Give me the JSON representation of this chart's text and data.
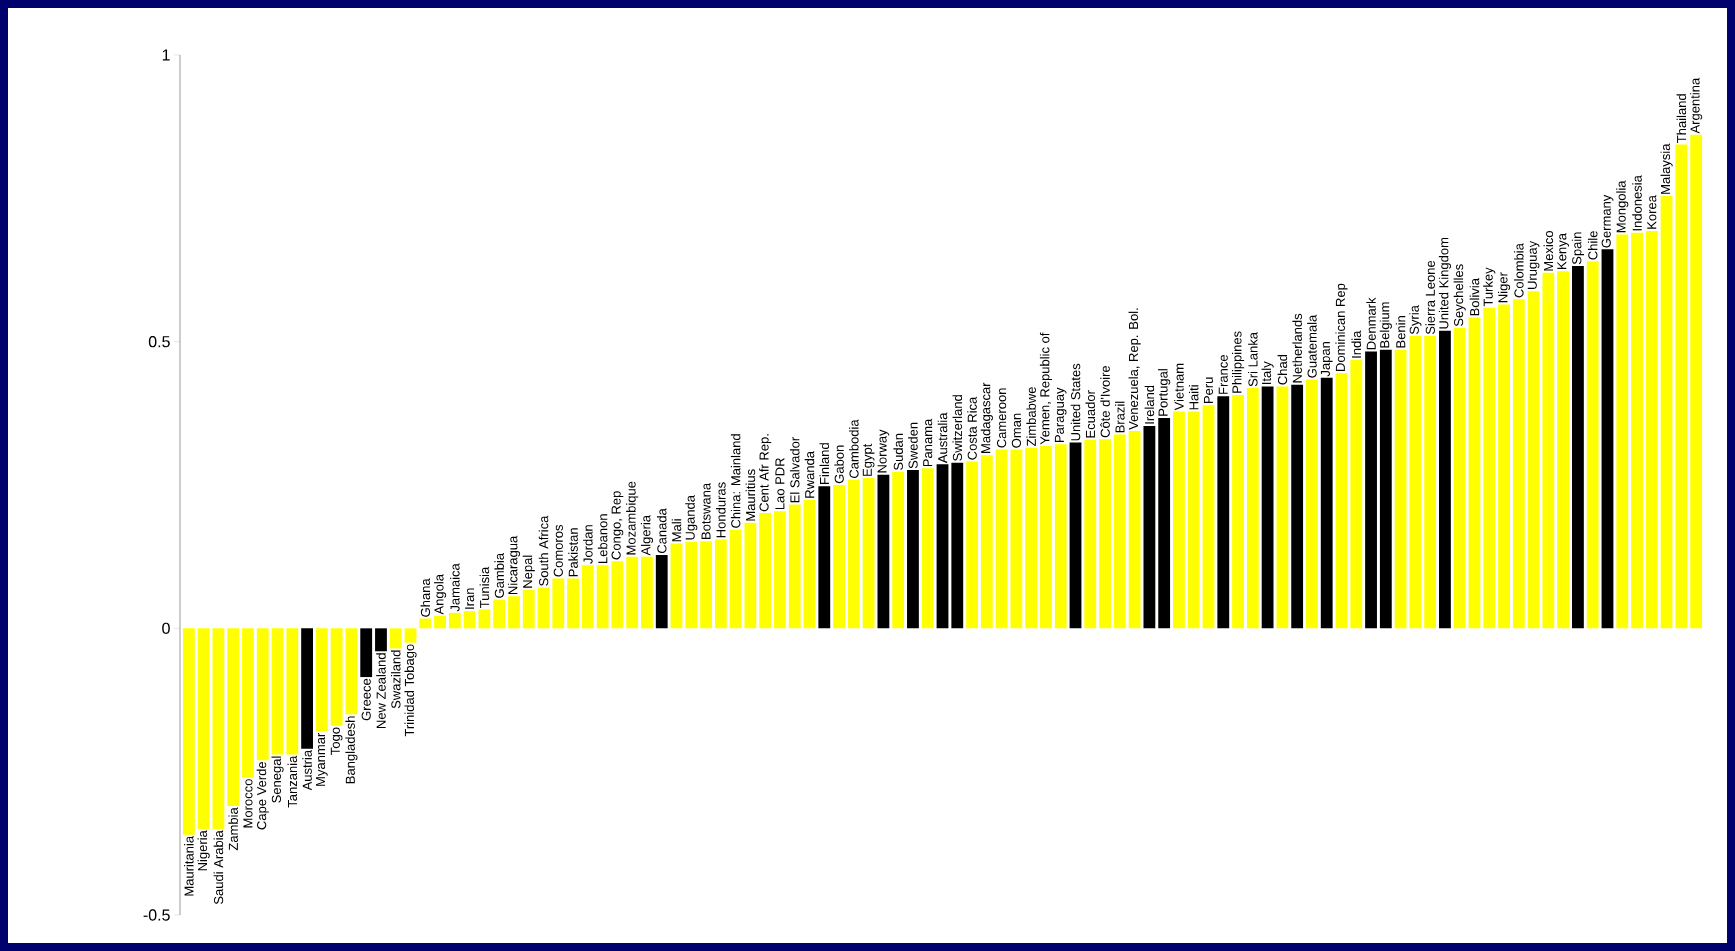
{
  "chart_data": {
    "type": "bar",
    "categories": [
      "Mauritania",
      "Nigeria",
      "Saudi Arabia",
      "Zambia",
      "Morocco",
      "Cape Verde",
      "Senegal",
      "Tanzania",
      "Austria",
      "Myanmar",
      "Togo",
      "Bangladesh",
      "Greece",
      "New Zealand",
      "Swaziland",
      "Trinidad Tobago",
      "Ghana",
      "Angola",
      "Jamaica",
      "Iran",
      "Tunisia",
      "Gambia",
      "Nicaragua",
      "Nepal",
      "South Africa",
      "Comoros",
      "Pakistan",
      "Jordan",
      "Lebanon",
      "Congo, Rep",
      "Mozambique",
      "Algeria",
      "Canada",
      "Mali",
      "Uganda",
      "Botswana",
      "Honduras",
      "China: Mainland",
      "Mauritius",
      "Cent Afr Rep.",
      "Lao PDR",
      "El Salvador",
      "Rwanda",
      "Finland",
      "Gabon",
      "Cambodia",
      "Egypt",
      "Norway",
      "Sudan",
      "Sweden",
      "Panama",
      "Australia",
      "Switzerland",
      "Costa Rica",
      "Madagascar",
      "Cameroon",
      "Oman",
      "Zimbabwe",
      "Yemen, Republic of",
      "Paraguay",
      "United States",
      "Ecuador",
      "Côte d'Ivoire",
      "Brazil",
      "Venezuela, Rep. Bol.",
      "Ireland",
      "Portugal",
      "Vietnam",
      "Haiti",
      "Peru",
      "France",
      "Philippines",
      "Sri Lanka",
      "Italy",
      "Chad",
      "Netherlands",
      "Guatemala",
      "Japan",
      "Dominican Rep",
      "India",
      "Denmark",
      "Belgium",
      "Benin",
      "Syria",
      "Sierra Leone",
      "United Kingdom",
      "Seychelles",
      "Bolivia",
      "Turkey",
      "Niger",
      "Colombia",
      "Uruguay",
      "Mexico",
      "Kenya",
      "Spain",
      "Chile",
      "Germany",
      "Mongolia",
      "Indonesia",
      "Korea",
      "Malaysia",
      "Thailand",
      "Argentina"
    ],
    "values": [
      -0.36,
      -0.35,
      -0.35,
      -0.31,
      -0.26,
      -0.23,
      -0.22,
      -0.22,
      -0.21,
      -0.18,
      -0.17,
      -0.15,
      -0.085,
      -0.04,
      -0.035,
      -0.025,
      0.017,
      0.022,
      0.027,
      0.03,
      0.033,
      0.05,
      0.056,
      0.067,
      0.071,
      0.087,
      0.087,
      0.11,
      0.11,
      0.117,
      0.125,
      0.125,
      0.128,
      0.148,
      0.151,
      0.152,
      0.155,
      0.172,
      0.184,
      0.201,
      0.204,
      0.216,
      0.224,
      0.248,
      0.25,
      0.259,
      0.262,
      0.268,
      0.273,
      0.276,
      0.279,
      0.286,
      0.289,
      0.291,
      0.302,
      0.312,
      0.312,
      0.315,
      0.318,
      0.321,
      0.324,
      0.329,
      0.33,
      0.338,
      0.344,
      0.353,
      0.367,
      0.378,
      0.378,
      0.389,
      0.405,
      0.407,
      0.419,
      0.422,
      0.422,
      0.425,
      0.434,
      0.437,
      0.445,
      0.468,
      0.483,
      0.486,
      0.486,
      0.51,
      0.51,
      0.519,
      0.524,
      0.542,
      0.559,
      0.565,
      0.574,
      0.588,
      0.62,
      0.623,
      0.632,
      0.64,
      0.661,
      0.687,
      0.69,
      0.693,
      0.754,
      0.844,
      0.861
    ],
    "colors": [
      "#ffff00",
      "#ffff00",
      "#ffff00",
      "#ffff00",
      "#ffff00",
      "#ffff00",
      "#ffff00",
      "#ffff00",
      "#000000",
      "#ffff00",
      "#ffff00",
      "#ffff00",
      "#000000",
      "#000000",
      "#ffff00",
      "#ffff00",
      "#ffff00",
      "#ffff00",
      "#ffff00",
      "#ffff00",
      "#ffff00",
      "#ffff00",
      "#ffff00",
      "#ffff00",
      "#ffff00",
      "#ffff00",
      "#ffff00",
      "#ffff00",
      "#ffff00",
      "#ffff00",
      "#ffff00",
      "#ffff00",
      "#000000",
      "#ffff00",
      "#ffff00",
      "#ffff00",
      "#ffff00",
      "#ffff00",
      "#ffff00",
      "#ffff00",
      "#ffff00",
      "#ffff00",
      "#ffff00",
      "#000000",
      "#ffff00",
      "#ffff00",
      "#ffff00",
      "#000000",
      "#ffff00",
      "#000000",
      "#ffff00",
      "#000000",
      "#000000",
      "#ffff00",
      "#ffff00",
      "#ffff00",
      "#ffff00",
      "#ffff00",
      "#ffff00",
      "#ffff00",
      "#000000",
      "#ffff00",
      "#ffff00",
      "#ffff00",
      "#ffff00",
      "#000000",
      "#000000",
      "#ffff00",
      "#ffff00",
      "#ffff00",
      "#000000",
      "#ffff00",
      "#ffff00",
      "#000000",
      "#ffff00",
      "#000000",
      "#ffff00",
      "#000000",
      "#ffff00",
      "#ffff00",
      "#000000",
      "#000000",
      "#ffff00",
      "#ffff00",
      "#ffff00",
      "#000000",
      "#ffff00",
      "#ffff00",
      "#ffff00",
      "#ffff00",
      "#ffff00",
      "#ffff00",
      "#ffff00",
      "#ffff00",
      "#000000",
      "#ffff00",
      "#000000",
      "#ffff00",
      "#ffff00",
      "#ffff00",
      "#ffff00",
      "#ffff00",
      "#ffff00"
    ],
    "ylim": [
      -0.5,
      1
    ],
    "yticks": [
      -0.5,
      0,
      0.5,
      1
    ]
  }
}
